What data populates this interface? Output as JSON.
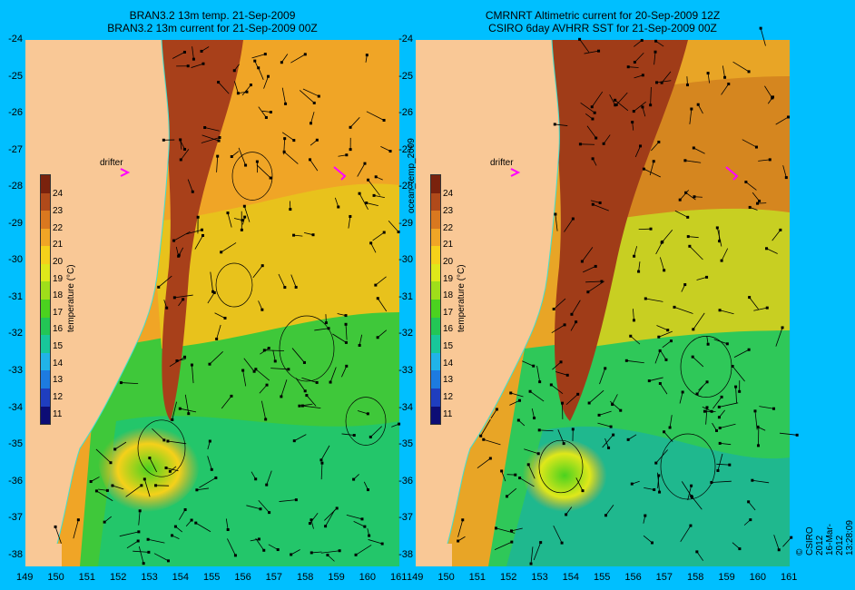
{
  "titles": {
    "left_line1": "BRAN3.2 13m temp. 21-Sep-2009",
    "left_line2": "BRAN3.2 13m current for 21-Sep-2009 00Z",
    "right_line1": "CMRNRT Altimetric current for 20-Sep-2009 12Z",
    "right_line2": "CSIRO 6day AVHRR SST for 21-Sep-2009 00Z"
  },
  "map": {
    "lon_range": [
      149,
      161
    ],
    "lat_range": [
      -38.3,
      -24
    ],
    "lat_ticks": [
      "-24",
      "-25",
      "-26",
      "-27",
      "-28",
      "-29",
      "-30",
      "-31",
      "-32",
      "-33",
      "-34",
      "-35",
      "-36",
      "-37",
      "-38"
    ],
    "lon_ticks": [
      "149",
      "150",
      "151",
      "152",
      "153",
      "154",
      "155",
      "156",
      "157",
      "158",
      "159",
      "160",
      "161"
    ],
    "land_color": "#f9c896",
    "coast_line_color": "#40e0d0",
    "vector_color": "#000000"
  },
  "colorbar": {
    "title": "temperature (°C)",
    "ticks": [
      "24",
      "23",
      "22",
      "21",
      "20",
      "19",
      "18",
      "17",
      "16",
      "15",
      "14",
      "13",
      "12",
      "11"
    ],
    "range": [
      10.5,
      25.2
    ],
    "colors": [
      "#0d0d75",
      "#1f3ebf",
      "#1d7be0",
      "#21b3e8",
      "#18c79a",
      "#23c655",
      "#4bd21f",
      "#9fde1a",
      "#dfe81a",
      "#f5d11a",
      "#f0a526",
      "#d9781f",
      "#b04a1a",
      "#7a220d"
    ]
  },
  "annotations": {
    "drifter_label": "drifter",
    "side_label": "ocean_temp_2009",
    "credit": "© CSIRO 2012  16-Mar-2012 13:28:09",
    "drifter_marker_color": "#ff00ff"
  }
}
